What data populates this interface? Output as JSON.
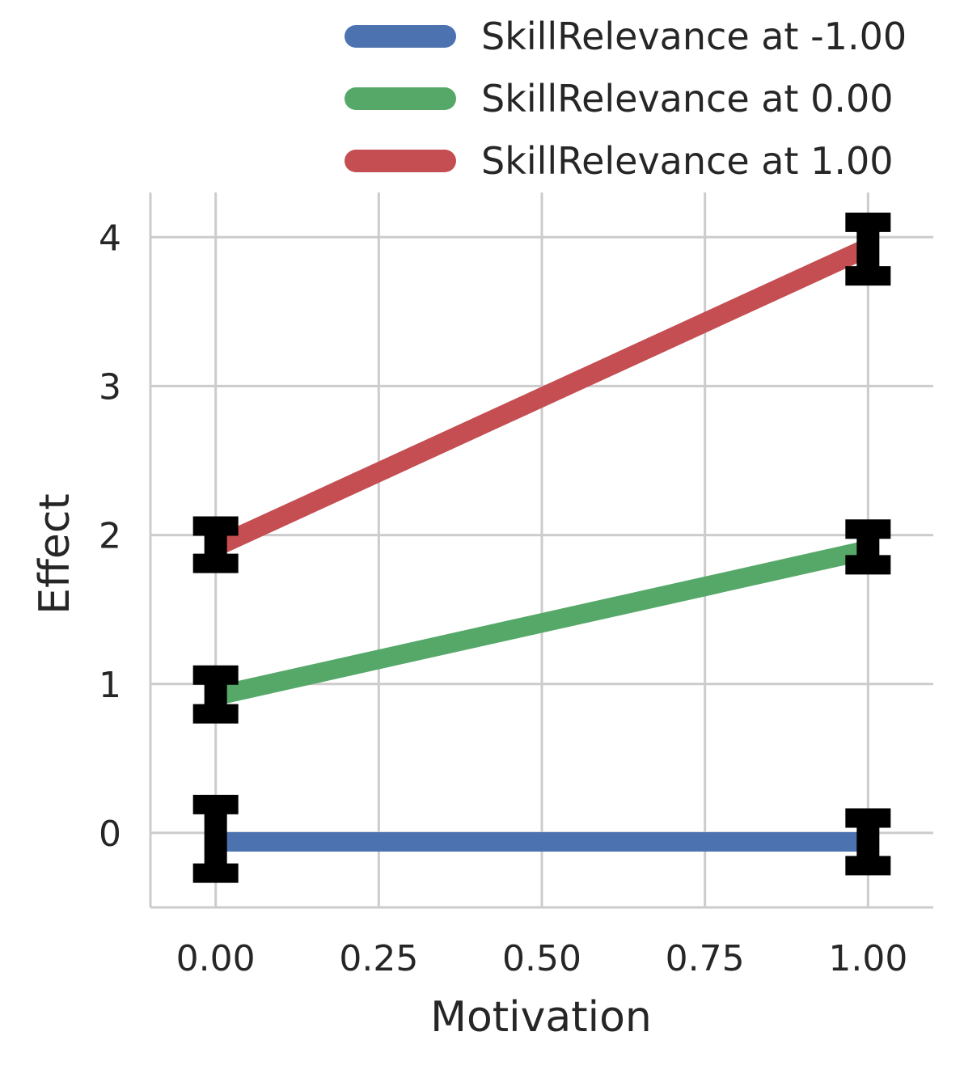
{
  "chart_data": {
    "type": "line",
    "xlabel": "Motivation",
    "ylabel": "Effect",
    "xlim": [
      -0.1,
      1.1
    ],
    "ylim": [
      -0.5,
      4.3
    ],
    "x_ticks": [
      "0.00",
      "0.25",
      "0.50",
      "0.75",
      "1.00"
    ],
    "x_tick_values": [
      0,
      0.25,
      0.5,
      0.75,
      1.0
    ],
    "y_ticks": [
      "0",
      "1",
      "2",
      "3",
      "4"
    ],
    "y_tick_values": [
      0,
      1,
      2,
      3,
      4
    ],
    "grid": true,
    "legend_position": "top-right",
    "series": [
      {
        "name": "SkillRelevance at -1.00",
        "color": "#4c72b0",
        "x": [
          0,
          1
        ],
        "y": [
          -0.06,
          -0.06
        ],
        "error_low": [
          -0.27,
          -0.22
        ],
        "error_high": [
          0.19,
          0.1
        ]
      },
      {
        "name": "SkillRelevance at 0.00",
        "color": "#55a868",
        "x": [
          0,
          1
        ],
        "y": [
          0.92,
          1.9
        ],
        "error_low": [
          0.8,
          1.8
        ],
        "error_high": [
          1.06,
          2.04
        ]
      },
      {
        "name": "SkillRelevance at 1.00",
        "color": "#c44e52",
        "x": [
          0,
          1
        ],
        "y": [
          1.92,
          3.93
        ],
        "error_low": [
          1.81,
          3.74
        ],
        "error_high": [
          2.06,
          4.1
        ]
      }
    ]
  }
}
